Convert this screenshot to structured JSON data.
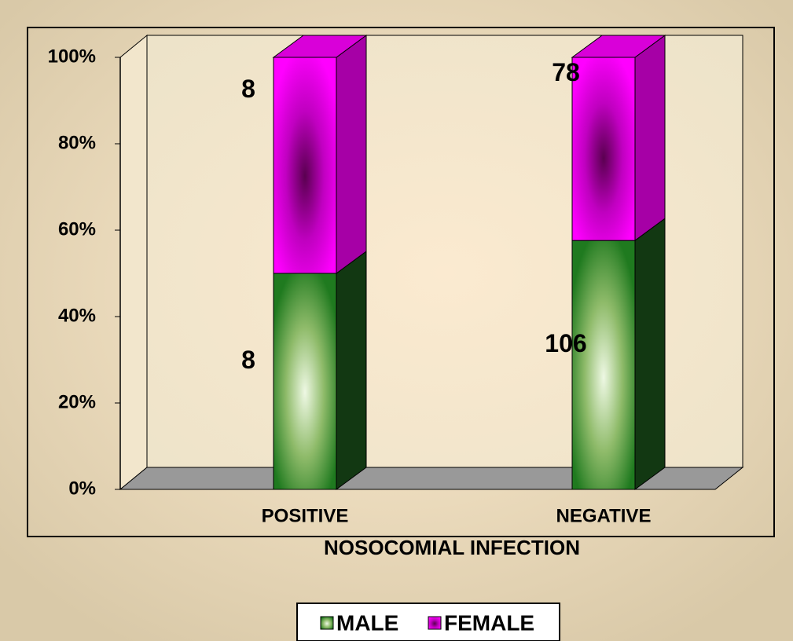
{
  "chart_data": {
    "type": "bar",
    "stack": "percent",
    "x_label": "NOSOCOMIAL INFECTION",
    "categories": [
      "POSITIVE",
      "NEGATIVE"
    ],
    "series": [
      {
        "name": "MALE",
        "color": "#2e8b2e",
        "values": [
          8,
          106
        ]
      },
      {
        "name": "FEMALE",
        "color": "#ff00ff",
        "values": [
          8,
          78
        ]
      }
    ],
    "ylim": [
      0,
      100
    ],
    "yticks": [
      {
        "value": 0,
        "label": "0%"
      },
      {
        "value": 20,
        "label": "20%"
      },
      {
        "value": 40,
        "label": "40%"
      },
      {
        "value": 60,
        "label": "60%"
      },
      {
        "value": 80,
        "label": "80%"
      },
      {
        "value": 100,
        "label": "100%"
      }
    ],
    "legend": "bottom"
  }
}
